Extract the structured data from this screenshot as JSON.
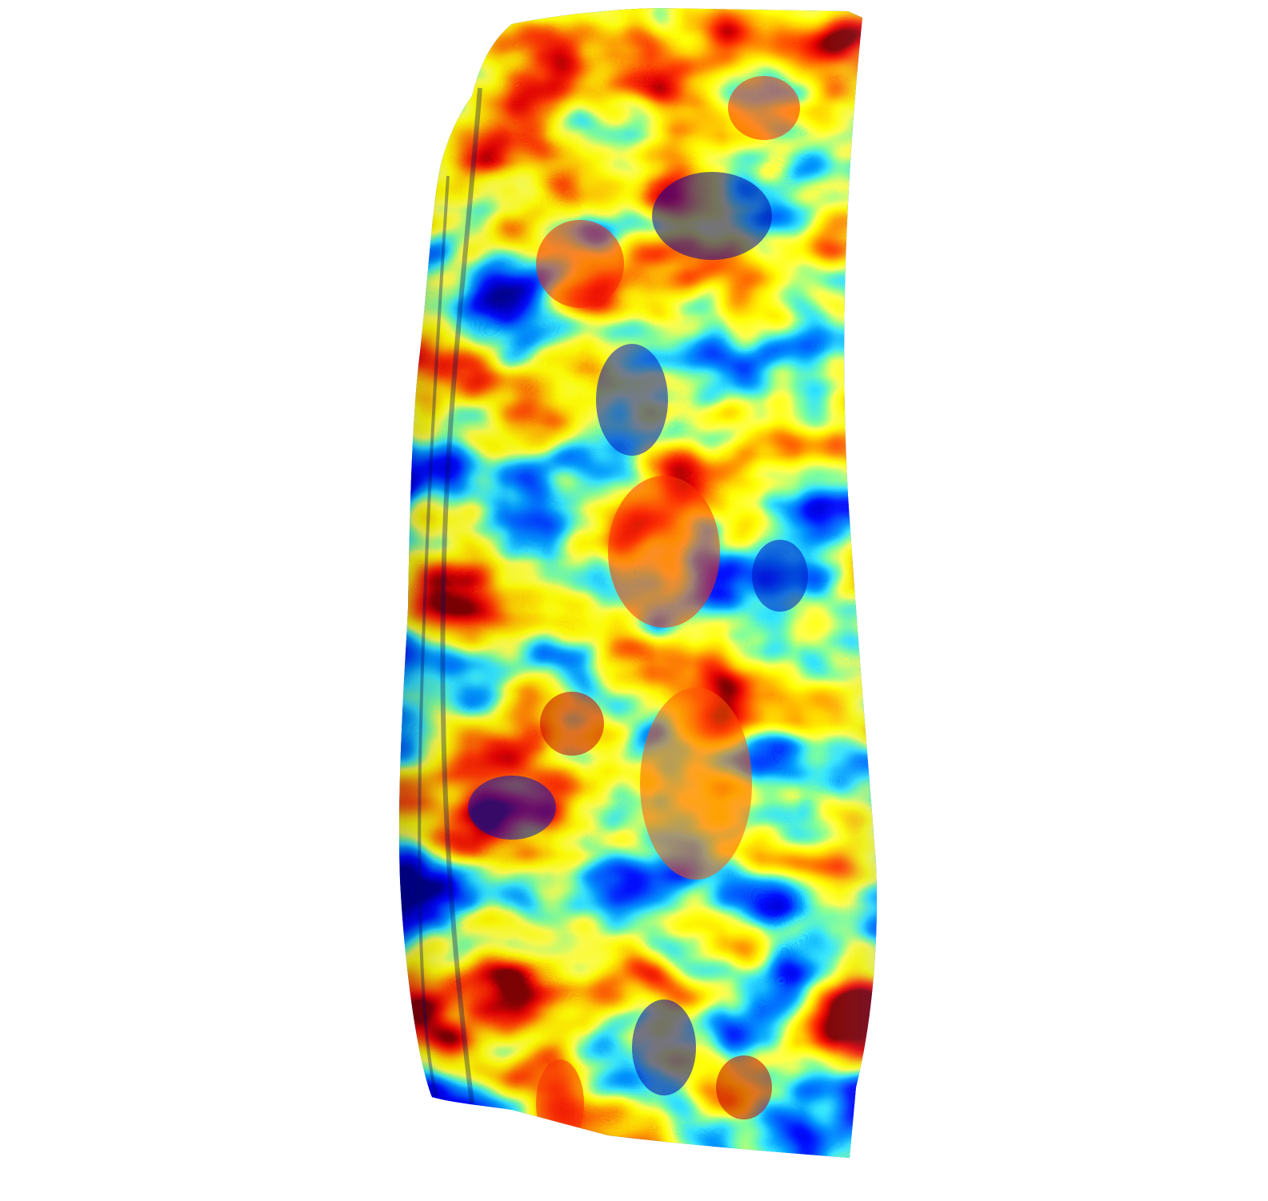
{
  "figure": {
    "subject": "3d-surface-colormap",
    "colormap": "jet",
    "colors": {
      "background": "#ffffff",
      "jet_stops": [
        "#00007f",
        "#0000ff",
        "#0080ff",
        "#00ffff",
        "#80ff80",
        "#ffff00",
        "#ff8000",
        "#ff0000",
        "#7f0000"
      ]
    }
  }
}
